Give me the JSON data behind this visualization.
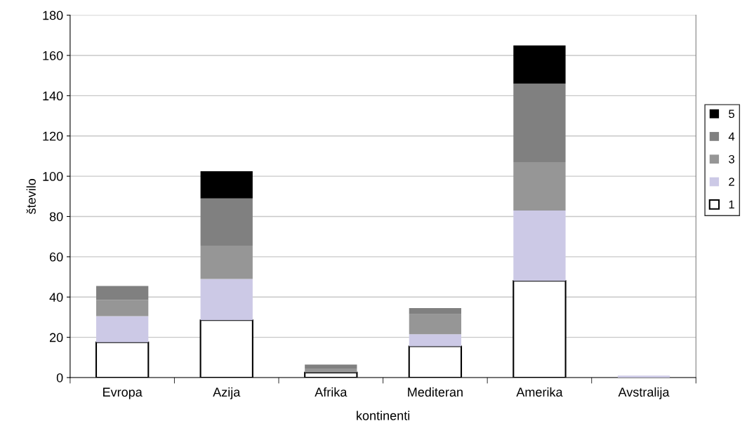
{
  "chart_data": {
    "type": "bar",
    "stacked": true,
    "xlabel": "kontinenti",
    "ylabel": "število",
    "categories": [
      "Evropa",
      "Azija",
      "Afrika",
      "Mediteran",
      "Amerika",
      "Avstralija"
    ],
    "series": [
      {
        "name": "1",
        "color": "#ffffff",
        "values": [
          17.5,
          28.5,
          2.5,
          15.5,
          48,
          0
        ]
      },
      {
        "name": "2",
        "color": "#ccc9e6",
        "values": [
          13,
          20.5,
          0,
          6,
          35,
          1
        ]
      },
      {
        "name": "3",
        "color": "#969696",
        "values": [
          8,
          16.5,
          2,
          10,
          24,
          0
        ]
      },
      {
        "name": "4",
        "color": "#808080",
        "values": [
          7,
          23.5,
          2,
          3,
          39,
          0
        ]
      },
      {
        "name": "5",
        "color": "#000000",
        "values": [
          0,
          13.5,
          0,
          0,
          19,
          0
        ]
      }
    ],
    "ylim": [
      0,
      180
    ],
    "yticks": [
      0,
      20,
      40,
      60,
      80,
      100,
      120,
      140,
      160,
      180
    ],
    "grid": "y",
    "legend": "right"
  }
}
